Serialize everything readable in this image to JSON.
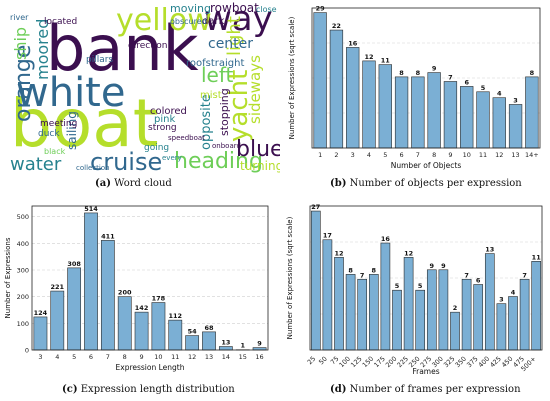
{
  "captions": {
    "a_tag": "(a)",
    "a_text": "Word cloud",
    "b_tag": "(b)",
    "b_text": "Number of objects per expression",
    "c_tag": "(c)",
    "c_text": "Expression length distribution",
    "d_tag": "(d)",
    "d_text": "Number of frames per expression"
  },
  "word_cloud": {
    "words": [
      {
        "text": "bank",
        "color": "#3b0f4f"
      },
      {
        "text": "boat",
        "color": "#b5de2b"
      },
      {
        "text": "white",
        "color": "#31688e"
      },
      {
        "text": "way",
        "color": "#3b0f4f"
      },
      {
        "text": "yellow",
        "color": "#b5de2b"
      },
      {
        "text": "yacht",
        "color": "#b5de2b"
      },
      {
        "text": "cruise",
        "color": "#31688e"
      },
      {
        "text": "water",
        "color": "#26828e"
      },
      {
        "text": "heading",
        "color": "#6ece58"
      },
      {
        "text": "blue",
        "color": "#3b0f4f"
      },
      {
        "text": "orange",
        "color": "#31688e"
      },
      {
        "text": "moored",
        "color": "#26828e"
      },
      {
        "text": "ship",
        "color": "#6ece58"
      },
      {
        "text": "left",
        "color": "#6ece58"
      },
      {
        "text": "light",
        "color": "#b5de2b"
      },
      {
        "text": "sideways",
        "color": "#b5de2b"
      },
      {
        "text": "center",
        "color": "#31688e"
      },
      {
        "text": "rowboat",
        "color": "#3b0f4f"
      },
      {
        "text": "moving",
        "color": "#26828e"
      },
      {
        "text": "dark",
        "color": "#3b0f4f"
      },
      {
        "text": "opposite",
        "color": "#26828e"
      },
      {
        "text": "stopping",
        "color": "#3b0f4f"
      },
      {
        "text": "turning",
        "color": "#b5de2b"
      },
      {
        "text": "sailing",
        "color": "#31688e"
      },
      {
        "text": "pink",
        "color": "#26828e"
      },
      {
        "text": "colored",
        "color": "#3b0f4f"
      },
      {
        "text": "roofstraight",
        "color": "#31688e"
      },
      {
        "text": "mist",
        "color": "#b5de2b"
      },
      {
        "text": "pillars",
        "color": "#31688e"
      },
      {
        "text": "direction",
        "color": "#3b0f4f"
      },
      {
        "text": "duck",
        "color": "#31688e"
      },
      {
        "text": "going",
        "color": "#26828e"
      },
      {
        "text": "meeting",
        "color": "#3b0f4f"
      },
      {
        "text": "strong",
        "color": "#3b0f4f"
      },
      {
        "text": "black",
        "color": "#6ece58"
      },
      {
        "text": "located",
        "color": "#3b0f4f"
      },
      {
        "text": "river",
        "color": "#31688e"
      },
      {
        "text": "obscured",
        "color": "#31688e"
      },
      {
        "text": "close",
        "color": "#26828e"
      },
      {
        "text": "onboard",
        "color": "#3b0f4f"
      },
      {
        "text": "collection",
        "color": "#31688e"
      },
      {
        "text": "speedboat",
        "color": "#3b0f4f"
      },
      {
        "text": "every",
        "color": "#26828e"
      }
    ]
  },
  "chart_data": [
    {
      "id": "b",
      "type": "bar",
      "xlabel": "Number of Objects",
      "ylabel": "Number of Expressions (sqrt scale)",
      "scale": "sqrt",
      "categories": [
        "1",
        "2",
        "3",
        "4",
        "5",
        "6",
        "7",
        "8",
        "9",
        "10",
        "11",
        "12",
        "13",
        "14+"
      ],
      "values": [
        29,
        22,
        16,
        12,
        11,
        8,
        8,
        9,
        7,
        6,
        5,
        4,
        3,
        8
      ],
      "labels": [
        "29",
        "22",
        "16",
        "12",
        "11",
        "8",
        "8",
        "9",
        "7",
        "6",
        "5",
        "4",
        "3",
        "8"
      ],
      "ylim": [
        0,
        31
      ],
      "grid": true,
      "bar_color": "#7bafd4"
    },
    {
      "id": "c",
      "type": "bar",
      "xlabel": "Expression Length",
      "ylabel": "Number of Expressions",
      "scale": "linear",
      "categories": [
        "3",
        "4",
        "5",
        "6",
        "7",
        "8",
        "9",
        "10",
        "11",
        "12",
        "13",
        "14",
        "15",
        "16"
      ],
      "values": [
        124,
        221,
        308,
        514,
        411,
        200,
        142,
        178,
        112,
        54,
        68,
        13,
        1,
        9
      ],
      "labels": [
        "124",
        "221",
        "308",
        "514",
        "411",
        "200",
        "142",
        "178",
        "112",
        "54",
        "68",
        "13",
        "1",
        "9"
      ],
      "yticks": [
        0,
        100,
        200,
        300,
        400,
        500
      ],
      "ylim": [
        0,
        540
      ],
      "grid": true,
      "bar_color": "#7bafd4"
    },
    {
      "id": "d",
      "type": "bar",
      "xlabel": "Frames",
      "ylabel": "Number of Expressions (sqrt scale)",
      "scale": "sqrt",
      "categories": [
        "25",
        "50",
        "75",
        "100",
        "125",
        "150",
        "175",
        "200",
        "225",
        "250",
        "275",
        "300",
        "325",
        "350",
        "375",
        "400",
        "425",
        "450",
        "475",
        "500+"
      ],
      "values": [
        27,
        17,
        12,
        8,
        7,
        8,
        16,
        5,
        12,
        5,
        9,
        9,
        2,
        7,
        6,
        13,
        3,
        4,
        7,
        11
      ],
      "labels": [
        "27",
        "17",
        "12",
        "8",
        "7",
        "8",
        "16",
        "5",
        "12",
        "5",
        "9",
        "9",
        "2",
        "7",
        "6",
        "13",
        "3",
        "4",
        "7",
        "11"
      ],
      "ylim": [
        0,
        29
      ],
      "grid": true,
      "bar_color": "#7bafd4"
    }
  ]
}
